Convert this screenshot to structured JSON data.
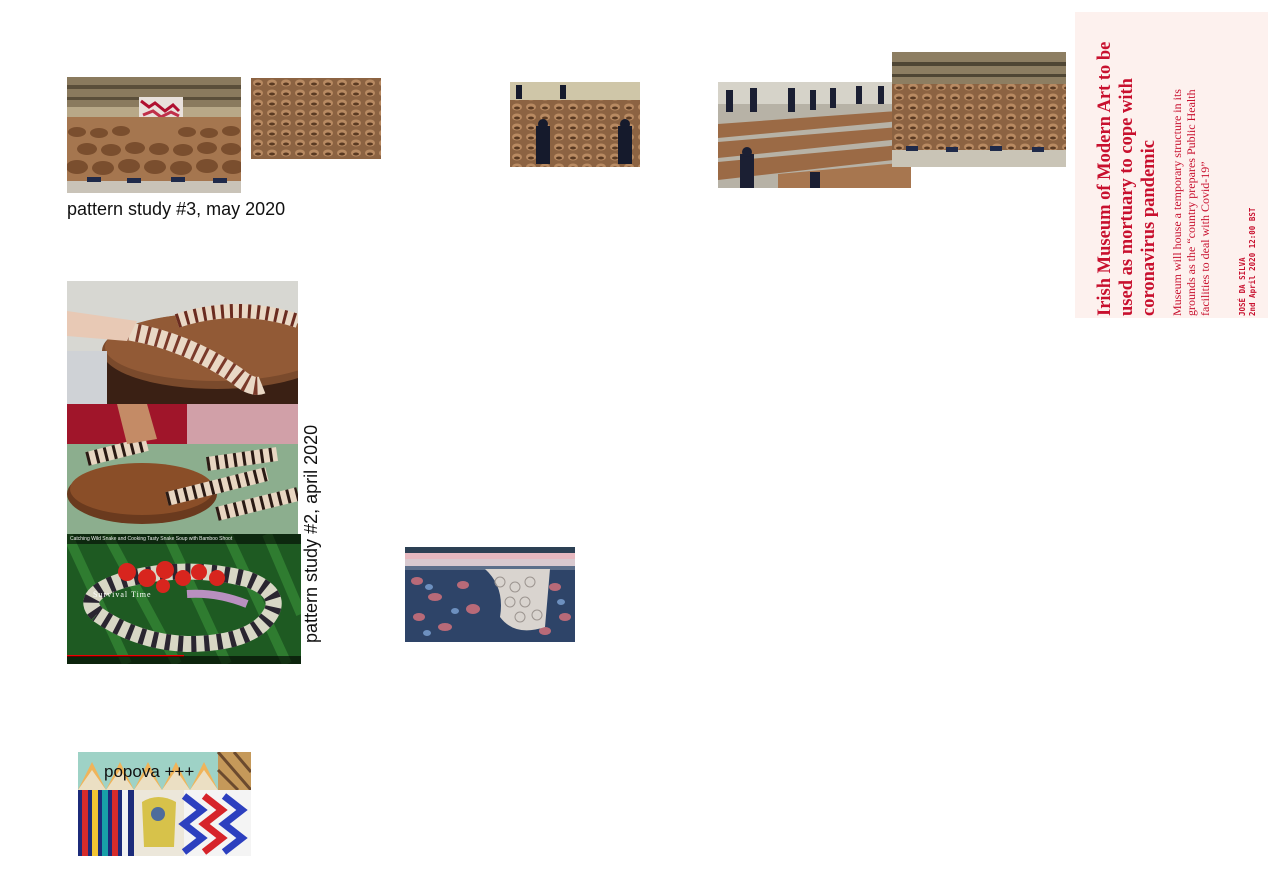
{
  "captions": {
    "study3": "pattern study #3, may 2020",
    "study2": "pattern study #2, april 2020",
    "popova": "popova +++"
  },
  "article": {
    "headline": "Irish Museum of Modern Art to be used as mortuary to cope with coronavirus pandemic",
    "standfirst": "Museum will house a temporary structure in its grounds as the “country prepares Public Health facilities to deal with Covid-19”",
    "author": "JOSÉ DA SILVA",
    "date": "2nd April 2020 12:00 BST"
  },
  "video": {
    "title": "Catching Wild Snake and Cooking Tasty Snake Soup with Bamboo Shoot",
    "watermark": "Survival Time"
  },
  "colors": {
    "accent": "#c8102e",
    "article_bg": "#fdf1ee"
  }
}
